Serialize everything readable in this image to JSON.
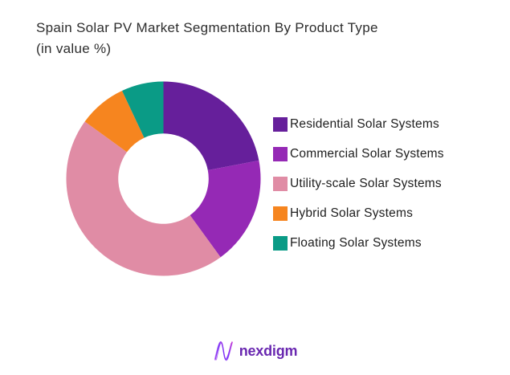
{
  "title": {
    "line1": "Spain Solar PV Market Segmentation By Product Type",
    "line2": "(in value %)"
  },
  "chart_data": {
    "type": "pie",
    "subtype": "donut",
    "title": "Spain Solar PV Market Segmentation By Product Type (in value %)",
    "labels": [
      "Residential Solar Systems",
      "Commercial Solar Systems",
      "Utility-scale Solar Systems",
      "Hybrid Solar Systems",
      "Floating Solar Systems"
    ],
    "values": [
      22,
      18,
      45,
      8,
      7
    ],
    "unit": "percent of market value",
    "colors": [
      "#661F9B",
      "#9529B5",
      "#E08CA5",
      "#F6851F",
      "#0A9B86"
    ],
    "start_angle_deg": 0,
    "direction": "clockwise",
    "inner_radius_ratio": 0.465,
    "legend_position": "right",
    "data_labels_shown": false
  },
  "footer": {
    "brand": "nexdigm",
    "brand_color": "#6927B0"
  }
}
